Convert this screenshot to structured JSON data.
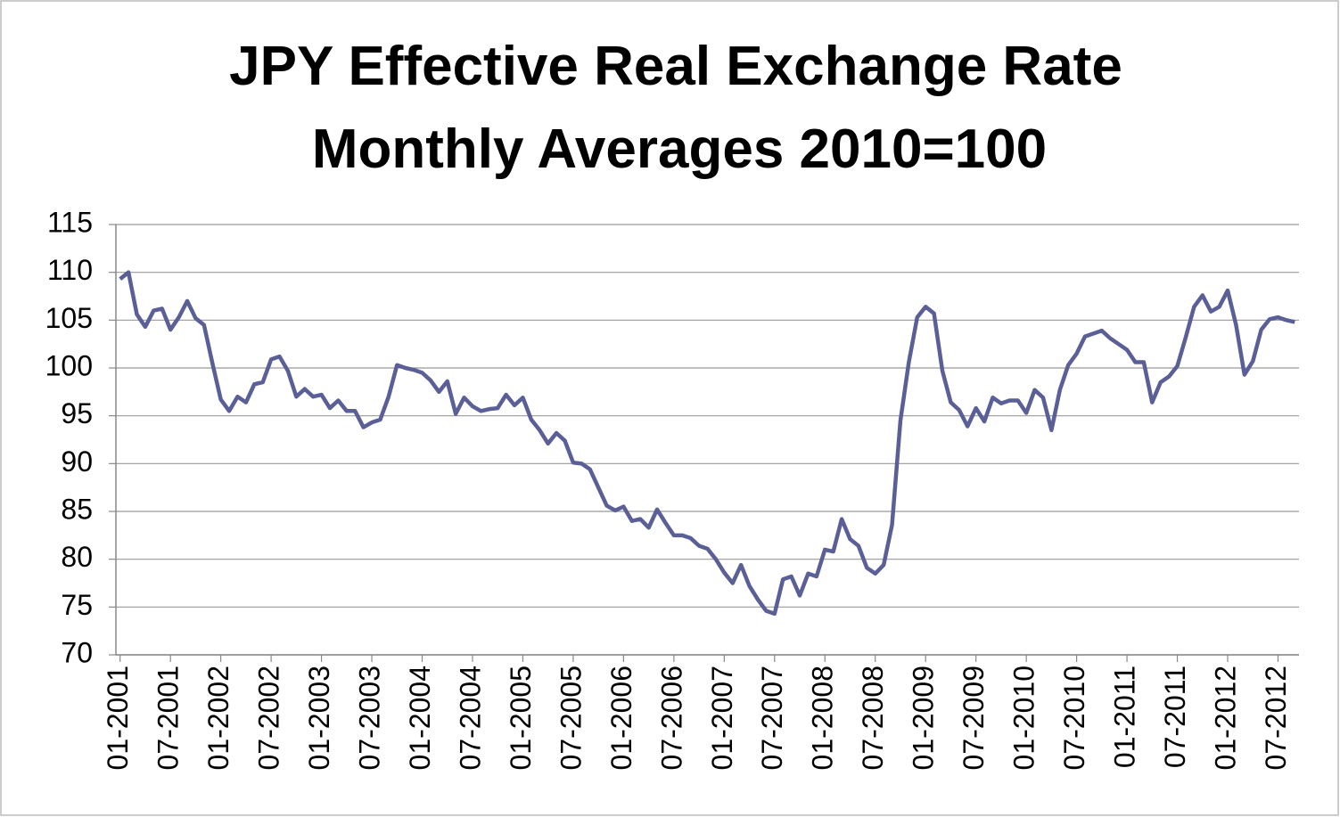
{
  "chart_data": {
    "type": "line",
    "title": "JPY Effective Real Exchange Rate",
    "subtitle": "Monthly Averages 2010=100",
    "categories": [
      "01-2001",
      null,
      null,
      null,
      null,
      null,
      "07-2001",
      null,
      null,
      null,
      null,
      null,
      "01-2002",
      null,
      null,
      null,
      null,
      null,
      "07-2002",
      null,
      null,
      null,
      null,
      null,
      "01-2003",
      null,
      null,
      null,
      null,
      null,
      "07-2003",
      null,
      null,
      null,
      null,
      null,
      "01-2004",
      null,
      null,
      null,
      null,
      null,
      "07-2004",
      null,
      null,
      null,
      null,
      null,
      "01-2005",
      null,
      null,
      null,
      null,
      null,
      "07-2005",
      null,
      null,
      null,
      null,
      null,
      "01-2006",
      null,
      null,
      null,
      null,
      null,
      "07-2006",
      null,
      null,
      null,
      null,
      null,
      "01-2007",
      null,
      null,
      null,
      null,
      null,
      "07-2007",
      null,
      null,
      null,
      null,
      null,
      "01-2008",
      null,
      null,
      null,
      null,
      null,
      "07-2008",
      null,
      null,
      null,
      null,
      null,
      "01-2009",
      null,
      null,
      null,
      null,
      null,
      "07-2009",
      null,
      null,
      null,
      null,
      null,
      "01-2010",
      null,
      null,
      null,
      null,
      null,
      "07-2010",
      null,
      null,
      null,
      null,
      null,
      "01-2011",
      null,
      null,
      null,
      null,
      null,
      "07-2011",
      null,
      null,
      null,
      null,
      null,
      "01-2012",
      null,
      null,
      null,
      null,
      null,
      "07-2012",
      null,
      null
    ],
    "values": [
      109.3,
      110,
      105.6,
      104.3,
      106,
      106.2,
      104,
      105.3,
      107,
      105.2,
      104.5,
      100.5,
      96.7,
      95.5,
      97,
      96.4,
      98.3,
      98.5,
      100.9,
      101.2,
      99.7,
      97,
      97.8,
      97,
      97.2,
      95.8,
      96.6,
      95.5,
      95.5,
      93.8,
      94.3,
      94.6,
      97,
      100.3,
      100,
      99.8,
      99.5,
      98.7,
      97.5,
      98.6,
      95.2,
      96.9,
      96,
      95.5,
      95.7,
      95.8,
      97.2,
      96.1,
      96.9,
      94.6,
      93.5,
      92.1,
      93.2,
      92.4,
      90.1,
      90,
      89.4,
      87.5,
      85.6,
      85.1,
      85.5,
      84,
      84.2,
      83.3,
      85.2,
      83.8,
      82.5,
      82.5,
      82.2,
      81.4,
      81.1,
      80,
      78.6,
      77.5,
      79.4,
      77.2,
      75.8,
      74.6,
      74.3,
      77.9,
      78.2,
      76.2,
      78.5,
      78.2,
      81,
      80.8,
      84.2,
      82.1,
      81.4,
      79.1,
      78.5,
      79.4,
      83.6,
      94.5,
      100.6,
      105.3,
      106.4,
      105.7,
      99.7,
      96.4,
      95.6,
      93.9,
      95.8,
      94.4,
      96.9,
      96.3,
      96.6,
      96.6,
      95.3,
      97.7,
      96.9,
      93.5,
      97.7,
      100.3,
      101.5,
      103.3,
      103.6,
      103.9,
      103.1,
      102.5,
      101.9,
      100.6,
      100.6,
      96.4,
      98.5,
      99.1,
      100.2,
      103.2,
      106.4,
      107.6,
      105.9,
      106.4,
      108.1,
      104.5,
      99.3,
      100.7,
      104,
      105.1,
      105.3,
      105,
      104.8
    ],
    "color": "#5b5f97",
    "ylim": [
      70,
      115
    ],
    "yticks": [
      70,
      75,
      80,
      85,
      90,
      95,
      100,
      105,
      110,
      115
    ],
    "grid": true
  }
}
